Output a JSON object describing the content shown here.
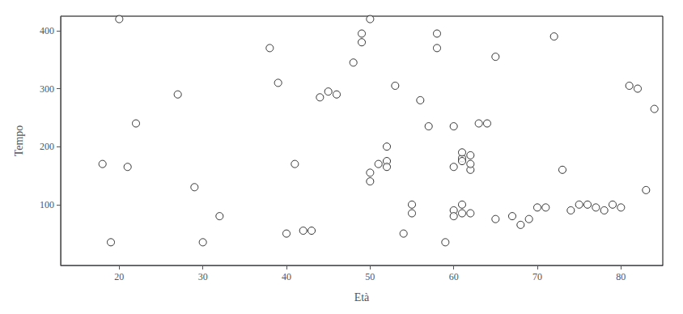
{
  "chart_data": {
    "type": "scatter",
    "xlabel": "Età",
    "ylabel": "Tempo",
    "x": [
      18,
      19,
      20,
      21,
      22,
      27,
      29,
      30,
      32,
      38,
      39,
      40,
      41,
      42,
      43,
      44,
      45,
      46,
      48,
      49,
      49,
      50,
      50,
      50,
      51,
      52,
      52,
      52,
      53,
      54,
      55,
      55,
      56,
      57,
      58,
      58,
      59,
      60,
      60,
      60,
      60,
      61,
      61,
      61,
      61,
      61,
      62,
      62,
      62,
      62,
      63,
      64,
      65,
      65,
      67,
      68,
      69,
      70,
      71,
      72,
      73,
      74,
      75,
      76,
      77,
      78,
      79,
      80,
      81,
      82,
      83,
      84
    ],
    "values": [
      170,
      35,
      420,
      165,
      240,
      290,
      130,
      35,
      80,
      370,
      310,
      50,
      170,
      55,
      55,
      285,
      295,
      290,
      345,
      395,
      380,
      420,
      155,
      140,
      170,
      175,
      165,
      200,
      305,
      50,
      100,
      85,
      280,
      235,
      395,
      370,
      35,
      90,
      80,
      235,
      165,
      85,
      100,
      180,
      175,
      190,
      85,
      160,
      170,
      185,
      240,
      240,
      75,
      355,
      80,
      65,
      75,
      95,
      95,
      390,
      160,
      90,
      100,
      100,
      95,
      90,
      100,
      95,
      305,
      300,
      125,
      265
    ],
    "xlim": [
      13,
      85
    ],
    "ylim": [
      -5,
      425
    ],
    "xticks": [
      20,
      30,
      40,
      50,
      60,
      70,
      80
    ],
    "yticks": [
      100,
      200,
      300,
      400
    ],
    "color": "black",
    "marker": "open",
    "grid": false
  }
}
